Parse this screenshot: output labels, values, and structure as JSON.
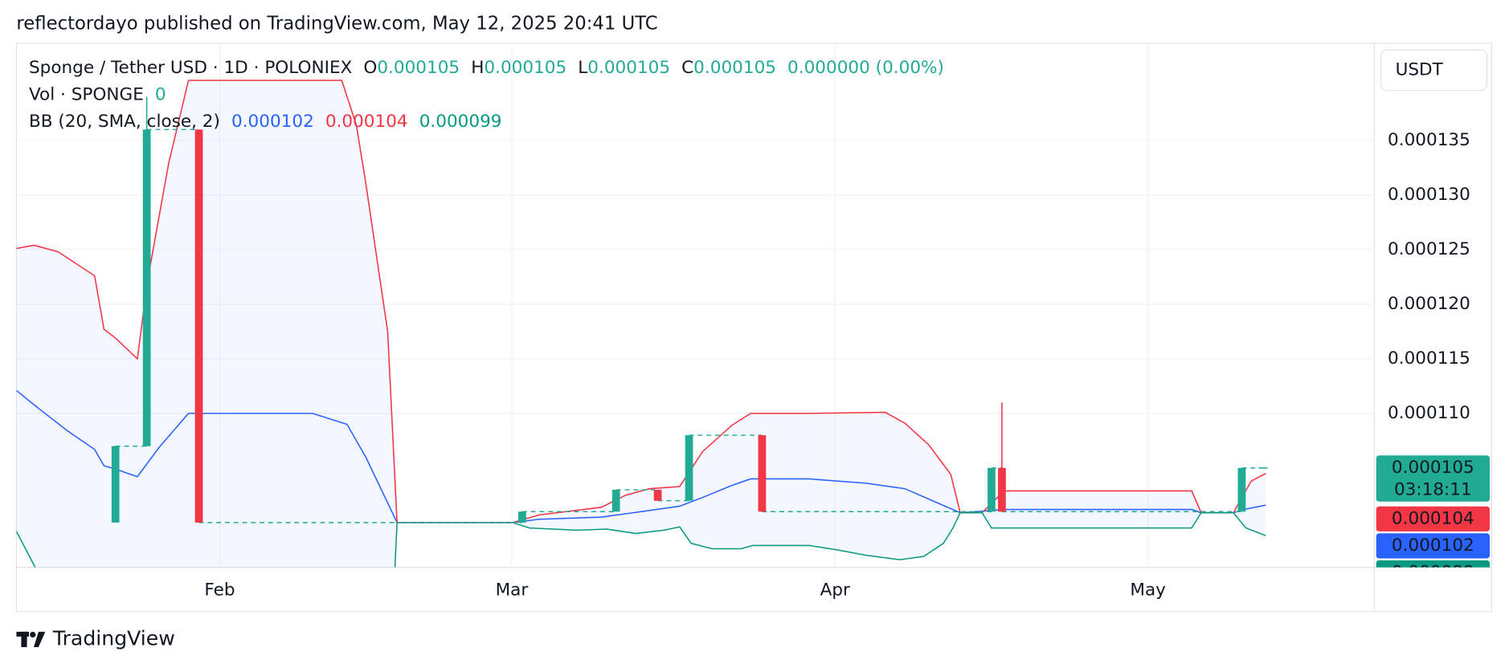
{
  "header": {
    "text": "reflectordayo published on TradingView.com, May 12, 2025 20:41 UTC"
  },
  "chart_data": {
    "type": "candlestick",
    "title": "Sponge / Tether USD · 1D · POLONIEX",
    "ohlc_labels": [
      "O",
      "H",
      "L",
      "C"
    ],
    "ohlc_values": [
      0.000105,
      0.000105,
      0.000105,
      0.000105
    ],
    "change": "0.000000 (0.00%)",
    "volume_legend": {
      "name": "Vol · SPONGE",
      "value": 0
    },
    "indicator": "BB (20, SMA, close, 2)",
    "currency": "USDT",
    "countdown": "03:18:11",
    "up_color": "#22ab94",
    "down_color": "#f23645",
    "x": [
      9,
      12,
      17,
      48,
      57,
      61,
      64,
      71,
      93,
      94,
      117,
      119
    ],
    "open": [
      0.0001,
      0.000107,
      0.000136,
      0.0001,
      0.000101,
      0.000103,
      0.000102,
      0.000108,
      0.000101,
      0.000105,
      0.000101,
      0.000105
    ],
    "high": [
      0.000107,
      0.000139,
      0.000136,
      0.000101,
      0.000103,
      0.000103,
      0.000108,
      0.000108,
      0.000105,
      0.000111,
      0.000105,
      0.000105
    ],
    "low": [
      0.0001,
      0.000107,
      0.0001,
      0.0001,
      0.000101,
      0.000102,
      0.000102,
      0.000101,
      0.000101,
      0.000101,
      0.000101,
      0.000105
    ],
    "close": [
      0.000107,
      0.000136,
      0.0001,
      0.000101,
      0.000103,
      0.000102,
      0.000108,
      0.000101,
      0.000105,
      0.000101,
      0.000105,
      0.000105
    ],
    "bands": [
      {
        "color": "#2962ff",
        "last": 0.000102,
        "x": [
          -0.5,
          1.7,
          4.4,
          7,
          7.9,
          9,
          11.1,
          13.2,
          16,
          27.9,
          31.2,
          33,
          36,
          47.1,
          49.6,
          55.6,
          57.9,
          63.1,
          65.3,
          68.1,
          69.9,
          75.5,
          81,
          84.7,
          90,
          94.2,
          112.2,
          113.1,
          116.2,
          117.2,
          119.3
        ],
        "values": [
          0.0001121,
          0.0001104,
          0.0001084,
          0.0001067,
          0.0001052,
          0.0001049,
          0.0001042,
          0.0001069,
          0.00011,
          0.00011,
          0.000109,
          0.000106,
          0.0001,
          0.0001,
          0.0001003,
          0.0001005,
          0.0001008,
          0.0001015,
          0.0001023,
          0.0001034,
          0.000104,
          0.000104,
          0.0001036,
          0.0001031,
          0.0001009,
          0.0001012,
          0.0001012,
          0.0001009,
          0.0001009,
          0.0001012,
          0.0001016
        ]
      },
      {
        "color": "#f23645",
        "last": 0.000104,
        "x": [
          -0.5,
          1.2,
          3.5,
          7,
          7.9,
          9,
          11.1,
          12.1,
          14.1,
          16,
          30.7,
          32.1,
          33,
          35.1,
          36,
          47.1,
          49.6,
          55.6,
          57.9,
          60.2,
          63.1,
          65.3,
          68.1,
          69.9,
          75.5,
          82.8,
          84.7,
          87,
          89.1,
          90,
          92.1,
          94.2,
          112.2,
          113.1,
          116.2,
          117.9,
          119.3
        ],
        "values": [
          0.0001251,
          0.0001254,
          0.0001248,
          0.0001226,
          0.0001177,
          0.0001169,
          0.000115,
          0.0001223,
          0.0001329,
          0.0001405,
          0.0001405,
          0.0001364,
          0.0001311,
          0.0001175,
          0.0001,
          0.0001,
          0.0001007,
          0.0001014,
          0.0001025,
          0.0001031,
          0.0001033,
          0.0001065,
          0.0001089,
          0.00011,
          0.00011,
          0.0001101,
          0.0001091,
          0.0001071,
          0.0001044,
          0.0001009,
          0.0001009,
          0.0001029,
          0.0001029,
          0.0001009,
          0.0001009,
          0.0001038,
          0.0001045
        ]
      },
      {
        "color": "#089981",
        "last": 9.9e-05,
        "x": [
          -0.5,
          1.3,
          18,
          35.8,
          36,
          47.1,
          48.7,
          53.3,
          56.1,
          58.9,
          61.6,
          63.1,
          64.2,
          66.2,
          69,
          70.1,
          75.5,
          78.2,
          81,
          84.2,
          86.5,
          88.4,
          89.3,
          90,
          92.1,
          93,
          112.2,
          113.1,
          116.2,
          117.4,
          119.3
        ],
        "values": [
          9.92e-05,
          9.59e-05,
          null,
          9.59e-05,
          0.0001,
          0.0001,
          9.95e-05,
          9.93e-05,
          9.94e-05,
          9.9e-05,
          9.93e-05,
          9.96e-05,
          9.81e-05,
          9.76e-05,
          9.76e-05,
          9.79e-05,
          9.79e-05,
          9.75e-05,
          9.7e-05,
          9.66e-05,
          9.69e-05,
          9.81e-05,
          9.95e-05,
          0.0001009,
          0.0001009,
          9.95e-05,
          9.95e-05,
          0.0001009,
          0.0001009,
          9.95e-05,
          9.88e-05
        ]
      }
    ],
    "xlim": [
      -0.5,
      129.7
    ],
    "xticks": [
      {
        "value": 19,
        "label": "Feb"
      },
      {
        "value": 47,
        "label": "Mar"
      },
      {
        "value": 78,
        "label": "Apr"
      },
      {
        "value": 108,
        "label": "May"
      }
    ],
    "ylim": [
      9.59e-05,
      0.0001439
    ],
    "yticks": [
      {
        "value": 0.00011,
        "label": "0.000110"
      },
      0.000115,
      {
        "value": 0.00012,
        "label": "0.000120"
      },
      0.000125,
      {
        "value": 0.00013,
        "label": "0.000130"
      },
      0.000135
    ],
    "grid": true
  },
  "footer": {
    "brand": "TradingView"
  }
}
